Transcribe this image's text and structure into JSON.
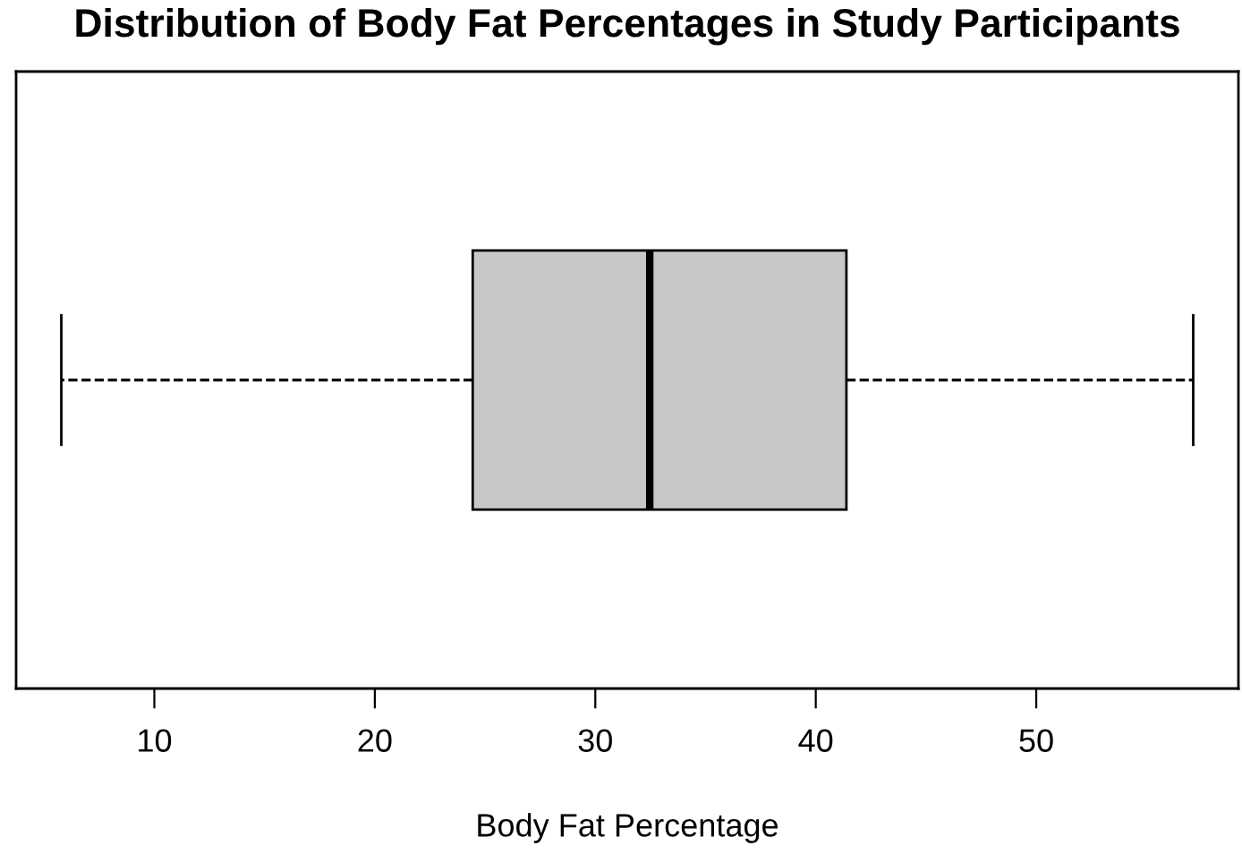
{
  "chart_data": {
    "type": "box",
    "title": "Distribution of Body Fat Percentages in Study Participants",
    "xlabel": "Body Fat Percentage",
    "orientation": "horizontal",
    "categories": [
      null
    ],
    "series": [
      {
        "color": "#c8c8c8",
        "boxes": [
          {
            "low": 5.78,
            "q1": 24.44,
            "median": 32.47,
            "q3": 41.39,
            "high": 57.12
          }
        ]
      }
    ],
    "xlim": [
      3.73,
      59.17
    ],
    "xticks": [
      10,
      20,
      30,
      40,
      50
    ],
    "tick_labels": "x",
    "grid": false,
    "line_style": "dashed"
  }
}
